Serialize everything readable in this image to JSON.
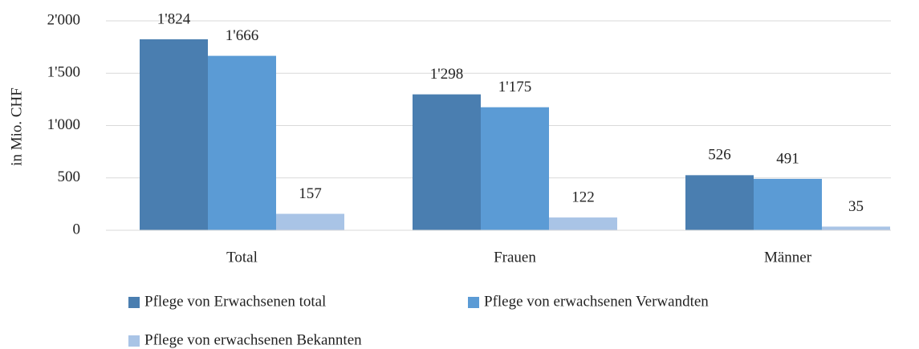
{
  "chart_data": {
    "type": "bar",
    "y_label": "in Mio. CHF",
    "categories": [
      "Total",
      "Frauen",
      "Männer"
    ],
    "series": [
      {
        "name": "Pflege von Erwachsenen total",
        "color": "#4a7eb0",
        "values": [
          1824,
          1298,
          526
        ],
        "value_labels": [
          "1'824",
          "1'298",
          "526"
        ]
      },
      {
        "name": "Pflege von erwachsenen Verwandten",
        "color": "#5b9bd5",
        "values": [
          1666,
          1175,
          491
        ],
        "value_labels": [
          "1'666",
          "1'175",
          "491"
        ]
      },
      {
        "name": "Pflege von erwachsenen Bekannten",
        "color": "#a9c4e6",
        "values": [
          157,
          122,
          35
        ],
        "value_labels": [
          "157",
          "122",
          "35"
        ]
      }
    ],
    "ylim": [
      0,
      2000
    ],
    "yticks": [
      0,
      500,
      {
        "value": 1000,
        "label": "1'000"
      },
      {
        "value": 1500,
        "label": "1'500"
      },
      {
        "value": 2000,
        "label": "2'000"
      }
    ],
    "grid": true,
    "legend": "bottom"
  }
}
